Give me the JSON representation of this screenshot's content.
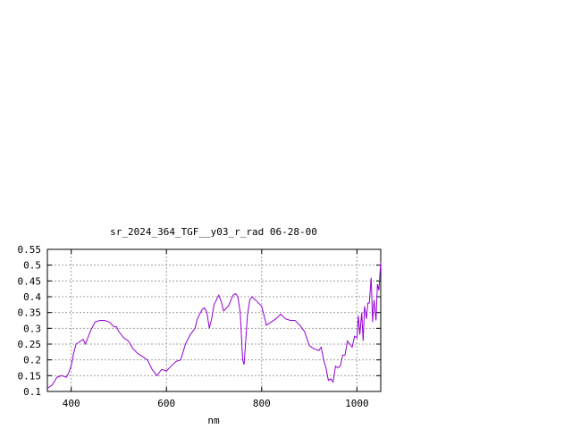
{
  "chart_data": {
    "type": "line",
    "title": "sr_2024_364_TGF__y03_r_rad 06-28-00",
    "xlabel": "nm",
    "ylabel": "",
    "xlim": [
      350,
      1050
    ],
    "ylim": [
      0.1,
      0.55
    ],
    "xticks": [
      400,
      600,
      800,
      1000
    ],
    "yticks": [
      0.1,
      0.15,
      0.2,
      0.25,
      0.3,
      0.35,
      0.4,
      0.45,
      0.5,
      0.55
    ],
    "grid": true,
    "series_color": "#9400d3",
    "series": [
      {
        "x": [
          350,
          360,
          370,
          380,
          390,
          395,
          400,
          405,
          410,
          420,
          425,
          430,
          440,
          450,
          460,
          470,
          480,
          490,
          495,
          500,
          510,
          520,
          530,
          540,
          550,
          560,
          570,
          580,
          590,
          600,
          610,
          620,
          630,
          640,
          650,
          660,
          665,
          670,
          675,
          680,
          685,
          690,
          695,
          700,
          705,
          710,
          715,
          720,
          730,
          740,
          745,
          750,
          755,
          760,
          763,
          766,
          770,
          775,
          780,
          790,
          800,
          810,
          820,
          830,
          840,
          850,
          860,
          870,
          880,
          890,
          900,
          910,
          920,
          925,
          930,
          935,
          940,
          945,
          950,
          955,
          960,
          965,
          970,
          975,
          980,
          985,
          990,
          995,
          1000,
          1003,
          1006,
          1010,
          1013,
          1016,
          1020,
          1023,
          1026,
          1030,
          1033,
          1036,
          1040,
          1043,
          1046,
          1050
        ],
        "y": [
          0.11,
          0.12,
          0.145,
          0.15,
          0.145,
          0.16,
          0.18,
          0.22,
          0.25,
          0.26,
          0.265,
          0.25,
          0.29,
          0.32,
          0.325,
          0.325,
          0.32,
          0.305,
          0.305,
          0.29,
          0.27,
          0.26,
          0.235,
          0.22,
          0.21,
          0.2,
          0.17,
          0.15,
          0.17,
          0.165,
          0.18,
          0.195,
          0.2,
          0.25,
          0.28,
          0.3,
          0.33,
          0.345,
          0.36,
          0.365,
          0.35,
          0.3,
          0.33,
          0.375,
          0.39,
          0.405,
          0.385,
          0.355,
          0.37,
          0.405,
          0.41,
          0.4,
          0.35,
          0.2,
          0.185,
          0.25,
          0.34,
          0.39,
          0.4,
          0.385,
          0.37,
          0.31,
          0.32,
          0.33,
          0.345,
          0.33,
          0.325,
          0.325,
          0.31,
          0.29,
          0.245,
          0.235,
          0.23,
          0.24,
          0.2,
          0.175,
          0.135,
          0.14,
          0.13,
          0.18,
          0.175,
          0.18,
          0.215,
          0.215,
          0.26,
          0.25,
          0.24,
          0.275,
          0.27,
          0.34,
          0.28,
          0.35,
          0.26,
          0.37,
          0.33,
          0.38,
          0.38,
          0.46,
          0.32,
          0.39,
          0.325,
          0.44,
          0.42,
          0.51
        ]
      }
    ]
  }
}
